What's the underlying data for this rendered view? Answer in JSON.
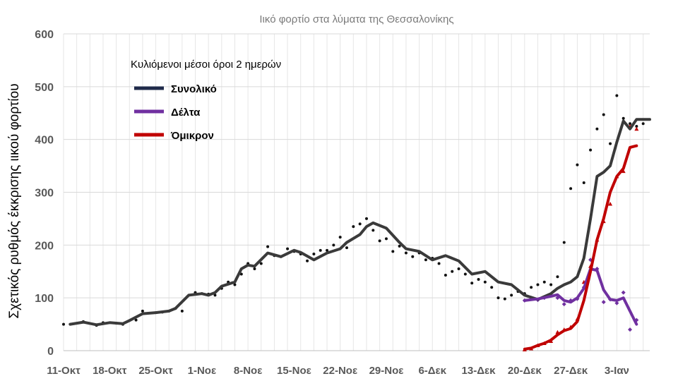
{
  "chart_data": {
    "type": "line",
    "title": "Ιικό φορτίο στα λύματα της Θεσσαλονίκης",
    "xlabel": "",
    "ylabel": "Σχετικός ρυθμός έκκρισης ιικού φορτίου",
    "ylim": [
      0,
      600
    ],
    "yticks": [
      0,
      100,
      200,
      300,
      400,
      500,
      600
    ],
    "xlim": [
      0,
      89
    ],
    "x_tick_labels": [
      "11-Οκτ",
      "18-Οκτ",
      "25-Οκτ",
      "1-Νοε",
      "8-Νοε",
      "15-Νοε",
      "22-Νοε",
      "29-Νοε",
      "6-Δεκ",
      "13-Δεκ",
      "20-Δεκ",
      "27-Δεκ",
      "3-Ιαν"
    ],
    "x_tick_days": [
      0,
      7,
      14,
      21,
      28,
      35,
      42,
      49,
      56,
      63,
      70,
      77,
      84
    ],
    "grid": true,
    "legend_title": "Κυλιόμενοι μέσοι όροι 2 ημερών",
    "legend_position": "top-left",
    "series": [
      {
        "name": "Συνολικό",
        "color": "#3a3a3a",
        "legend_color": "#1f2a4a",
        "days": [
          1,
          3,
          5,
          7,
          9,
          10,
          12,
          14,
          16,
          17,
          19,
          21,
          22,
          23,
          24,
          26,
          27,
          28,
          29,
          31,
          33,
          35,
          36,
          38,
          40,
          42,
          43,
          45,
          46,
          47,
          49,
          51,
          52,
          54,
          56,
          58,
          60,
          62,
          64,
          66,
          68,
          70,
          72,
          74,
          75,
          76,
          77,
          78,
          79,
          80,
          81,
          82,
          83,
          84,
          85,
          86,
          87,
          88,
          89
        ],
        "values": [
          50,
          54,
          49,
          53,
          51,
          57,
          70,
          72,
          75,
          80,
          105,
          108,
          105,
          110,
          122,
          130,
          155,
          162,
          160,
          185,
          178,
          190,
          186,
          172,
          185,
          193,
          205,
          220,
          235,
          242,
          232,
          205,
          193,
          188,
          172,
          180,
          170,
          145,
          150,
          130,
          125,
          105,
          97,
          108,
          118,
          125,
          130,
          140,
          175,
          250,
          330,
          338,
          350,
          395,
          435,
          420,
          438,
          438,
          438
        ]
      },
      {
        "name": "Δέλτα",
        "color": "#7030a0",
        "days": [
          70,
          72,
          74,
          75,
          76,
          77,
          78,
          79,
          80,
          81,
          82,
          83,
          84,
          85,
          86,
          87
        ],
        "values": [
          95,
          98,
          103,
          106,
          95,
          92,
          100,
          118,
          155,
          152,
          115,
          97,
          95,
          100,
          75,
          50
        ]
      },
      {
        "name": "Όμικρον",
        "color": "#c00000",
        "days": [
          70,
          71,
          72,
          73,
          74,
          75,
          76,
          77,
          78,
          79,
          80,
          81,
          82,
          83,
          84,
          85,
          86,
          87
        ],
        "values": [
          3,
          5,
          10,
          14,
          20,
          30,
          38,
          42,
          55,
          95,
          150,
          210,
          250,
          300,
          330,
          345,
          385,
          388
        ]
      }
    ],
    "scatter_points": [
      {
        "series": "Συνολικό",
        "days": [
          0,
          3,
          5,
          6,
          8,
          9,
          11,
          12,
          14,
          15,
          16,
          17,
          18,
          20,
          21,
          22,
          23,
          24,
          25,
          26,
          27,
          28,
          29,
          30,
          31,
          32,
          33,
          34,
          35,
          36,
          37,
          38,
          39,
          40,
          41,
          42,
          43,
          44,
          45,
          46,
          47,
          48,
          49,
          50,
          51,
          52,
          53,
          54,
          55,
          56,
          57,
          58,
          59,
          60,
          61,
          62,
          63,
          64,
          65,
          66,
          67,
          68,
          69,
          70,
          71,
          72,
          73,
          74,
          75,
          76,
          77,
          78,
          79,
          80,
          81,
          82,
          83,
          84,
          85,
          86,
          87,
          88
        ],
        "values": [
          50,
          55,
          48,
          53,
          52,
          50,
          58,
          75,
          72,
          73,
          75,
          80,
          75,
          110,
          108,
          107,
          105,
          118,
          130,
          125,
          145,
          165,
          155,
          165,
          197,
          180,
          178,
          193,
          188,
          183,
          170,
          183,
          190,
          190,
          200,
          215,
          195,
          235,
          240,
          250,
          228,
          208,
          212,
          188,
          198,
          185,
          178,
          185,
          172,
          175,
          165,
          143,
          150,
          155,
          145,
          128,
          135,
          130,
          120,
          100,
          98,
          105,
          112,
          108,
          120,
          125,
          130,
          125,
          140,
          205,
          307,
          352,
          318,
          380,
          420,
          447,
          392,
          483,
          440,
          430,
          425,
          430
        ]
      },
      {
        "series": "Δέλτα",
        "days": [
          70,
          71,
          72,
          73,
          74,
          75,
          76,
          77,
          78,
          79,
          80,
          81,
          82,
          83,
          84,
          85,
          86,
          87
        ],
        "values": [
          95,
          100,
          96,
          100,
          105,
          100,
          88,
          95,
          98,
          120,
          172,
          155,
          92,
          97,
          90,
          110,
          40,
          58
        ]
      },
      {
        "series": "Όμικρον",
        "days": [
          70,
          71,
          72,
          73,
          74,
          75,
          76,
          77,
          78,
          79,
          80,
          81,
          82,
          83,
          84,
          85,
          86,
          87
        ],
        "values": [
          2,
          4,
          10,
          14,
          18,
          35,
          40,
          45,
          60,
          130,
          160,
          210,
          245,
          278,
          330,
          340,
          425,
          420
        ]
      }
    ]
  }
}
